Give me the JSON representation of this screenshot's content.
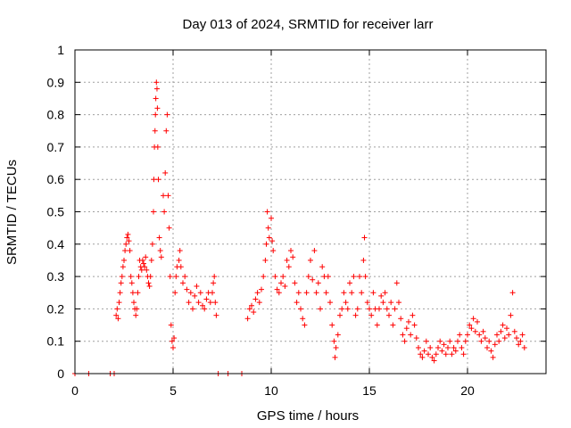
{
  "chart_data": {
    "type": "scatter",
    "title": "Day 013 of 2024, SRMTID for receiver larr",
    "xlabel": "GPS time / hours",
    "ylabel": "SRMTID / TECUs",
    "xlim": [
      0,
      24
    ],
    "ylim": [
      0,
      1
    ],
    "xticks": [
      0,
      5,
      10,
      15,
      20
    ],
    "xtick_labels": [
      "0",
      "5",
      "10",
      "15",
      "20"
    ],
    "yticks": [
      0,
      0.1,
      0.2,
      0.3,
      0.4,
      0.5,
      0.6,
      0.7,
      0.8,
      0.9,
      1
    ],
    "ytick_labels": [
      "0",
      "0.1",
      "0.2",
      "0.3",
      "0.4",
      "0.5",
      "0.6",
      "0.7",
      "0.8",
      "0.9",
      "1"
    ],
    "grid": true,
    "marker": "+",
    "color": "#ff0000",
    "series": [
      {
        "name": "SRMTID",
        "points": [
          [
            0.0,
            0
          ],
          [
            0.7,
            0
          ],
          [
            1.8,
            0
          ],
          [
            2.0,
            0
          ],
          [
            2.1,
            0.18
          ],
          [
            2.15,
            0.2
          ],
          [
            2.2,
            0.17
          ],
          [
            2.25,
            0.22
          ],
          [
            2.3,
            0.25
          ],
          [
            2.35,
            0.28
          ],
          [
            2.4,
            0.3
          ],
          [
            2.45,
            0.33
          ],
          [
            2.5,
            0.35
          ],
          [
            2.55,
            0.38
          ],
          [
            2.6,
            0.4
          ],
          [
            2.65,
            0.42
          ],
          [
            2.7,
            0.43
          ],
          [
            2.75,
            0.41
          ],
          [
            2.8,
            0.38
          ],
          [
            2.85,
            0.3
          ],
          [
            2.9,
            0.28
          ],
          [
            2.95,
            0.25
          ],
          [
            3.0,
            0.22
          ],
          [
            3.05,
            0.2
          ],
          [
            3.1,
            0.18
          ],
          [
            3.15,
            0.2
          ],
          [
            3.2,
            0.25
          ],
          [
            3.25,
            0.3
          ],
          [
            3.3,
            0.35
          ],
          [
            3.35,
            0.33
          ],
          [
            3.4,
            0.32
          ],
          [
            3.45,
            0.35
          ],
          [
            3.5,
            0.34
          ],
          [
            3.55,
            0.33
          ],
          [
            3.6,
            0.36
          ],
          [
            3.65,
            0.32
          ],
          [
            3.7,
            0.3
          ],
          [
            3.75,
            0.28
          ],
          [
            3.8,
            0.27
          ],
          [
            3.85,
            0.3
          ],
          [
            3.9,
            0.35
          ],
          [
            3.95,
            0.4
          ],
          [
            4.0,
            0.5
          ],
          [
            4.02,
            0.6
          ],
          [
            4.05,
            0.7
          ],
          [
            4.08,
            0.75
          ],
          [
            4.1,
            0.8
          ],
          [
            4.12,
            0.85
          ],
          [
            4.15,
            0.9
          ],
          [
            4.18,
            0.88
          ],
          [
            4.2,
            0.82
          ],
          [
            4.22,
            0.7
          ],
          [
            4.25,
            0.6
          ],
          [
            4.3,
            0.42
          ],
          [
            4.35,
            0.38
          ],
          [
            4.4,
            0.36
          ],
          [
            4.5,
            0.55
          ],
          [
            4.55,
            0.5
          ],
          [
            4.6,
            0.62
          ],
          [
            4.65,
            0.75
          ],
          [
            4.7,
            0.8
          ],
          [
            4.75,
            0.55
          ],
          [
            4.8,
            0.45
          ],
          [
            4.85,
            0.3
          ],
          [
            4.9,
            0.15
          ],
          [
            4.95,
            0.1
          ],
          [
            5.0,
            0.08
          ],
          [
            5.05,
            0.11
          ],
          [
            5.1,
            0.25
          ],
          [
            5.15,
            0.3
          ],
          [
            5.2,
            0.33
          ],
          [
            5.3,
            0.35
          ],
          [
            5.35,
            0.38
          ],
          [
            5.4,
            0.33
          ],
          [
            5.5,
            0.28
          ],
          [
            5.6,
            0.3
          ],
          [
            5.7,
            0.26
          ],
          [
            5.8,
            0.22
          ],
          [
            5.9,
            0.25
          ],
          [
            6.0,
            0.2
          ],
          [
            6.1,
            0.24
          ],
          [
            6.2,
            0.27
          ],
          [
            6.3,
            0.22
          ],
          [
            6.4,
            0.25
          ],
          [
            6.5,
            0.21
          ],
          [
            6.6,
            0.2
          ],
          [
            6.7,
            0.23
          ],
          [
            6.8,
            0.25
          ],
          [
            6.9,
            0.22
          ],
          [
            7.0,
            0.25
          ],
          [
            7.05,
            0.28
          ],
          [
            7.1,
            0.3
          ],
          [
            7.15,
            0.22
          ],
          [
            7.2,
            0.18
          ],
          [
            7.3,
            0
          ],
          [
            7.8,
            0
          ],
          [
            8.5,
            0
          ],
          [
            8.8,
            0.17
          ],
          [
            8.9,
            0.2
          ],
          [
            9.0,
            0.21
          ],
          [
            9.1,
            0.19
          ],
          [
            9.2,
            0.23
          ],
          [
            9.3,
            0.25
          ],
          [
            9.4,
            0.22
          ],
          [
            9.5,
            0.26
          ],
          [
            9.6,
            0.3
          ],
          [
            9.7,
            0.35
          ],
          [
            9.75,
            0.4
          ],
          [
            9.8,
            0.5
          ],
          [
            9.85,
            0.45
          ],
          [
            9.9,
            0.42
          ],
          [
            10.0,
            0.48
          ],
          [
            10.05,
            0.41
          ],
          [
            10.1,
            0.38
          ],
          [
            10.2,
            0.3
          ],
          [
            10.3,
            0.26
          ],
          [
            10.4,
            0.25
          ],
          [
            10.5,
            0.28
          ],
          [
            10.6,
            0.3
          ],
          [
            10.7,
            0.27
          ],
          [
            10.8,
            0.35
          ],
          [
            10.9,
            0.33
          ],
          [
            11.0,
            0.38
          ],
          [
            11.1,
            0.36
          ],
          [
            11.2,
            0.28
          ],
          [
            11.3,
            0.22
          ],
          [
            11.4,
            0.25
          ],
          [
            11.5,
            0.2
          ],
          [
            11.6,
            0.17
          ],
          [
            11.7,
            0.15
          ],
          [
            11.8,
            0.25
          ],
          [
            11.9,
            0.3
          ],
          [
            12.0,
            0.35
          ],
          [
            12.1,
            0.29
          ],
          [
            12.2,
            0.38
          ],
          [
            12.3,
            0.25
          ],
          [
            12.4,
            0.28
          ],
          [
            12.5,
            0.2
          ],
          [
            12.6,
            0.33
          ],
          [
            12.7,
            0.3
          ],
          [
            12.8,
            0.25
          ],
          [
            12.9,
            0.3
          ],
          [
            13.0,
            0.22
          ],
          [
            13.1,
            0.15
          ],
          [
            13.2,
            0.1
          ],
          [
            13.25,
            0.05
          ],
          [
            13.3,
            0.08
          ],
          [
            13.4,
            0.12
          ],
          [
            13.5,
            0.18
          ],
          [
            13.6,
            0.2
          ],
          [
            13.7,
            0.25
          ],
          [
            13.8,
            0.22
          ],
          [
            13.9,
            0.2
          ],
          [
            14.0,
            0.28
          ],
          [
            14.1,
            0.25
          ],
          [
            14.2,
            0.3
          ],
          [
            14.3,
            0.18
          ],
          [
            14.4,
            0.2
          ],
          [
            14.5,
            0.3
          ],
          [
            14.6,
            0.25
          ],
          [
            14.7,
            0.35
          ],
          [
            14.75,
            0.42
          ],
          [
            14.8,
            0.3
          ],
          [
            14.9,
            0.22
          ],
          [
            15.0,
            0.2
          ],
          [
            15.1,
            0.18
          ],
          [
            15.2,
            0.25
          ],
          [
            15.3,
            0.2
          ],
          [
            15.4,
            0.15
          ],
          [
            15.5,
            0.2
          ],
          [
            15.6,
            0.24
          ],
          [
            15.7,
            0.22
          ],
          [
            15.8,
            0.25
          ],
          [
            15.9,
            0.2
          ],
          [
            16.0,
            0.18
          ],
          [
            16.1,
            0.22
          ],
          [
            16.2,
            0.15
          ],
          [
            16.3,
            0.2
          ],
          [
            16.4,
            0.28
          ],
          [
            16.5,
            0.22
          ],
          [
            16.6,
            0.17
          ],
          [
            16.7,
            0.12
          ],
          [
            16.8,
            0.1
          ],
          [
            16.9,
            0.14
          ],
          [
            17.0,
            0.16
          ],
          [
            17.1,
            0.12
          ],
          [
            17.2,
            0.18
          ],
          [
            17.3,
            0.15
          ],
          [
            17.4,
            0.11
          ],
          [
            17.5,
            0.08
          ],
          [
            17.6,
            0.06
          ],
          [
            17.7,
            0.05
          ],
          [
            17.8,
            0.07
          ],
          [
            17.9,
            0.1
          ],
          [
            18.0,
            0.06
          ],
          [
            18.1,
            0.08
          ],
          [
            18.2,
            0.05
          ],
          [
            18.3,
            0.04
          ],
          [
            18.4,
            0.06
          ],
          [
            18.5,
            0.08
          ],
          [
            18.6,
            0.1
          ],
          [
            18.7,
            0.07
          ],
          [
            18.8,
            0.09
          ],
          [
            18.9,
            0.06
          ],
          [
            19.0,
            0.08
          ],
          [
            19.1,
            0.1
          ],
          [
            19.2,
            0.06
          ],
          [
            19.3,
            0.08
          ],
          [
            19.4,
            0.07
          ],
          [
            19.5,
            0.1
          ],
          [
            19.6,
            0.12
          ],
          [
            19.7,
            0.08
          ],
          [
            19.8,
            0.06
          ],
          [
            19.9,
            0.1
          ],
          [
            20.0,
            0.12
          ],
          [
            20.1,
            0.15
          ],
          [
            20.2,
            0.14
          ],
          [
            20.3,
            0.17
          ],
          [
            20.4,
            0.13
          ],
          [
            20.5,
            0.16
          ],
          [
            20.6,
            0.12
          ],
          [
            20.7,
            0.1
          ],
          [
            20.8,
            0.13
          ],
          [
            20.9,
            0.11
          ],
          [
            21.0,
            0.08
          ],
          [
            21.1,
            0.1
          ],
          [
            21.2,
            0.07
          ],
          [
            21.3,
            0.05
          ],
          [
            21.4,
            0.09
          ],
          [
            21.5,
            0.12
          ],
          [
            21.6,
            0.1
          ],
          [
            21.7,
            0.13
          ],
          [
            21.8,
            0.15
          ],
          [
            21.9,
            0.11
          ],
          [
            22.0,
            0.14
          ],
          [
            22.1,
            0.12
          ],
          [
            22.2,
            0.18
          ],
          [
            22.3,
            0.25
          ],
          [
            22.4,
            0.13
          ],
          [
            22.5,
            0.11
          ],
          [
            22.6,
            0.09
          ],
          [
            22.7,
            0.1
          ],
          [
            22.8,
            0.12
          ],
          [
            22.9,
            0.08
          ]
        ]
      }
    ]
  }
}
